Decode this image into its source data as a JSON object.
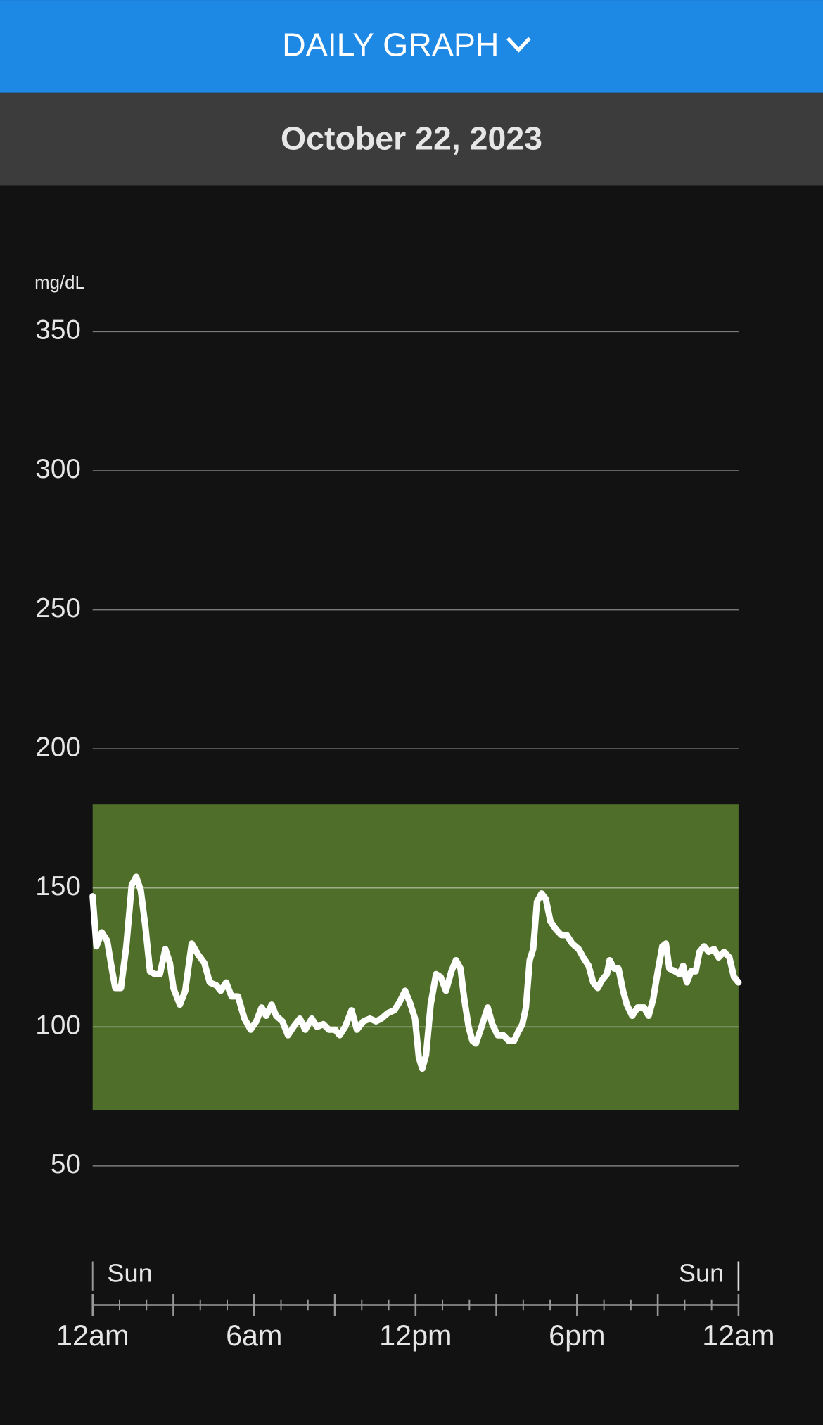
{
  "header": {
    "title": "DAILY GRAPH",
    "date": "October 22, 2023"
  },
  "chart_data": {
    "type": "line",
    "y_unit": "mg/dL",
    "start_day": "Sun",
    "end_day": "Sun",
    "xlim": [
      0,
      24
    ],
    "ylim": [
      0,
      350
    ],
    "yticks": [
      50,
      100,
      150,
      200,
      250,
      300,
      350
    ],
    "xticks": [
      {
        "value": 0,
        "label": "12am"
      },
      {
        "value": 6,
        "label": "6am"
      },
      {
        "value": 12,
        "label": "12pm"
      },
      {
        "value": 18,
        "label": "6pm"
      },
      {
        "value": 24,
        "label": "12am"
      }
    ],
    "xticks_major": [
      0,
      3,
      6,
      9,
      12,
      15,
      18,
      21,
      24
    ],
    "xticks_minor": [
      1,
      2,
      4,
      5,
      7,
      8,
      10,
      11,
      13,
      14,
      16,
      17,
      19,
      20,
      22,
      23
    ],
    "grid": true,
    "target_range": [
      70,
      180
    ],
    "target_color": "#4f6e2a",
    "series": [
      {
        "color": "#ffffff",
        "x": [
          0,
          0.14,
          0.34,
          0.54,
          0.71,
          0.84,
          1.05,
          1.25,
          1.45,
          1.62,
          1.79,
          1.96,
          2.13,
          2.3,
          2.5,
          2.7,
          2.87,
          3,
          3.24,
          3.44,
          3.68,
          3.92,
          4.15,
          4.35,
          4.59,
          4.76,
          4.96,
          5.16,
          5.4,
          5.64,
          5.87,
          6.08,
          6.28,
          6.45,
          6.65,
          6.82,
          7.05,
          7.26,
          7.46,
          7.7,
          7.9,
          8.14,
          8.34,
          8.57,
          8.78,
          9.01,
          9.18,
          9.38,
          9.62,
          9.82,
          10.06,
          10.3,
          10.53,
          10.73,
          10.97,
          11.21,
          11.41,
          11.61,
          11.78,
          11.98,
          12.12,
          12.25,
          12.39,
          12.56,
          12.76,
          12.93,
          13.13,
          13.33,
          13.5,
          13.67,
          13.81,
          13.97,
          14.11,
          14.24,
          14.45,
          14.68,
          14.85,
          15.05,
          15.26,
          15.46,
          15.66,
          15.8,
          15.97,
          16.1,
          16.24,
          16.37,
          16.51,
          16.68,
          16.84,
          17.01,
          17.22,
          17.42,
          17.62,
          17.82,
          18.06,
          18.23,
          18.43,
          18.6,
          18.77,
          18.94,
          19.11,
          19.21,
          19.38,
          19.54,
          19.71,
          19.85,
          20.05,
          20.25,
          20.49,
          20.66,
          20.83,
          21,
          21.17,
          21.3,
          21.43,
          21.64,
          21.81,
          21.94,
          22.08,
          22.24,
          22.41,
          22.55,
          22.72,
          22.89,
          23.09,
          23.26,
          23.46,
          23.66,
          23.83,
          24
        ],
        "values": [
          147,
          129,
          134,
          131,
          121,
          114,
          114,
          129,
          151,
          154,
          149,
          136,
          120,
          119,
          119,
          128,
          123,
          114,
          108,
          113,
          130,
          126,
          123,
          116,
          115,
          113,
          116,
          111,
          111,
          103,
          99,
          102,
          107,
          104,
          108,
          104,
          102,
          97,
          100,
          103,
          99,
          103,
          100,
          101,
          99,
          99,
          97,
          100,
          106,
          99,
          102,
          103,
          102,
          103,
          105,
          106,
          109,
          113,
          109,
          103,
          89,
          85,
          90,
          108,
          119,
          118,
          113,
          120,
          124,
          121,
          110,
          100,
          95,
          94,
          100,
          107,
          101,
          97,
          97,
          95,
          95,
          98,
          101,
          107,
          124,
          128,
          145,
          148,
          146,
          138,
          135,
          133,
          133,
          130,
          128,
          125,
          122,
          116,
          114,
          117,
          119,
          124,
          121,
          121,
          113,
          108,
          104,
          107,
          107,
          104,
          110,
          120,
          129,
          130,
          121,
          120,
          119,
          122,
          116,
          120,
          120,
          127,
          129,
          127,
          128,
          125,
          127,
          125,
          118,
          116
        ]
      }
    ]
  }
}
